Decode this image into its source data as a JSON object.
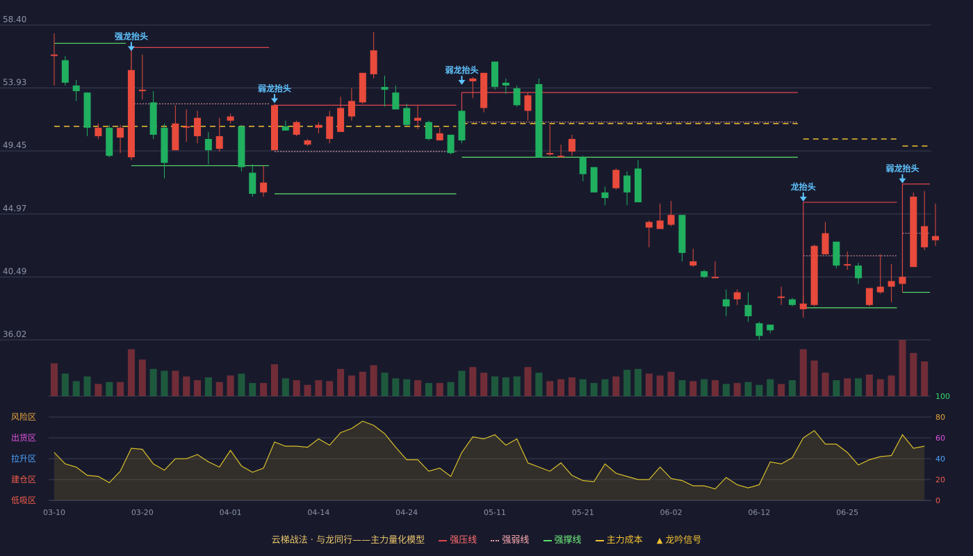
{
  "chart_data": {
    "type": "candlestick",
    "title": "",
    "price_axis": {
      "ticks": [
        "58.40",
        "53.93",
        "49.45",
        "44.97",
        "40.49",
        "36.02"
      ],
      "range": [
        36.02,
        58.4
      ]
    },
    "x_ticks": [
      "03-10",
      "03-20",
      "04-01",
      "04-14",
      "04-24",
      "05-11",
      "05-21",
      "06-02",
      "06-12",
      "06-25"
    ],
    "x_tick_index": [
      0,
      8,
      16,
      24,
      32,
      40,
      48,
      56,
      64,
      72
    ],
    "candles": [
      [
        56.3,
        56.3,
        57.8,
        54.1
      ],
      [
        55.9,
        54.3,
        56.2,
        54.1
      ],
      [
        54.1,
        53.7,
        54.5,
        53.0
      ],
      [
        53.6,
        51.1,
        53.6,
        50.5
      ],
      [
        50.5,
        51.1,
        51.4,
        50.3
      ],
      [
        51.1,
        49.1,
        51.3,
        49.0
      ],
      [
        50.4,
        51.1,
        51.3,
        49.3
      ],
      [
        49.0,
        55.2,
        56.5,
        48.8
      ],
      [
        53.7,
        53.8,
        56.3,
        53.1
      ],
      [
        52.9,
        50.6,
        53.7,
        50.3
      ],
      [
        51.1,
        48.6,
        51.4,
        47.5
      ],
      [
        49.5,
        51.4,
        52.7,
        49.5
      ],
      [
        51.1,
        51.2,
        52.4,
        50.1
      ],
      [
        50.5,
        51.8,
        52.3,
        50.0
      ],
      [
        50.3,
        49.5,
        50.8,
        48.5
      ],
      [
        49.6,
        50.5,
        51.8,
        49.4
      ],
      [
        51.6,
        51.9,
        52.1,
        51.4
      ],
      [
        51.2,
        48.3,
        51.3,
        48.0
      ],
      [
        47.9,
        46.4,
        48.5,
        46.2
      ],
      [
        46.5,
        47.2,
        48.4,
        46.2
      ],
      [
        49.5,
        52.7,
        52.8,
        49.5
      ],
      [
        51.2,
        50.9,
        51.6,
        50.9
      ],
      [
        50.6,
        51.5,
        51.6,
        50.5
      ],
      [
        49.9,
        50.2,
        50.3,
        49.8
      ],
      [
        51.1,
        51.3,
        51.5,
        50.7
      ],
      [
        50.3,
        51.9,
        52.3,
        50.0
      ],
      [
        50.8,
        52.5,
        53.3,
        50.8
      ],
      [
        51.9,
        53.0,
        53.9,
        51.6
      ],
      [
        52.9,
        55.0,
        55.0,
        52.8
      ],
      [
        54.9,
        56.6,
        57.9,
        54.6
      ],
      [
        54.0,
        53.8,
        54.8,
        52.6
      ],
      [
        53.6,
        52.4,
        54.1,
        52.4
      ],
      [
        52.5,
        51.3,
        52.8,
        51.2
      ],
      [
        51.6,
        51.8,
        52.7,
        51.0
      ],
      [
        51.5,
        50.3,
        51.6,
        50.2
      ],
      [
        50.2,
        50.7,
        51.1,
        50.2
      ],
      [
        50.6,
        49.3,
        50.6,
        49.2
      ],
      [
        52.3,
        50.2,
        52.4,
        50.0
      ],
      [
        54.4,
        54.6,
        54.7,
        53.2
      ],
      [
        52.5,
        55.0,
        55.0,
        52.2
      ],
      [
        55.8,
        54.0,
        55.8,
        53.8
      ],
      [
        54.3,
        54.1,
        54.6,
        53.5
      ],
      [
        53.9,
        52.7,
        54.1,
        52.6
      ],
      [
        52.3,
        53.4,
        53.6,
        51.6
      ],
      [
        54.2,
        49.0,
        54.6,
        49.0
      ],
      [
        49.2,
        49.3,
        51.3,
        49.1
      ],
      [
        49.1,
        49.1,
        49.9,
        49.0
      ],
      [
        49.4,
        50.3,
        50.6,
        49.1
      ],
      [
        49.0,
        47.8,
        49.1,
        47.3
      ],
      [
        48.3,
        46.5,
        48.3,
        46.5
      ],
      [
        46.5,
        46.1,
        46.9,
        45.6
      ],
      [
        46.8,
        48.1,
        48.2,
        46.7
      ],
      [
        47.7,
        46.5,
        48.0,
        45.6
      ],
      [
        48.2,
        45.8,
        48.8,
        45.8
      ],
      [
        44.0,
        44.4,
        44.5,
        42.6
      ],
      [
        43.9,
        44.5,
        45.7,
        43.9
      ],
      [
        44.2,
        44.9,
        45.9,
        44.1
      ],
      [
        44.9,
        42.2,
        44.9,
        41.6
      ],
      [
        41.3,
        41.6,
        42.5,
        41.2
      ],
      [
        40.9,
        40.5,
        41.0,
        40.4
      ],
      [
        40.5,
        40.5,
        41.6,
        40.5
      ],
      [
        38.9,
        38.4,
        39.6,
        37.7
      ],
      [
        38.9,
        39.4,
        39.6,
        38.5
      ],
      [
        38.5,
        37.7,
        39.4,
        37.3
      ],
      [
        37.2,
        36.3,
        37.3,
        36.0
      ],
      [
        37.1,
        36.7,
        37.1,
        36.5
      ],
      [
        39.0,
        39.1,
        39.8,
        38.5
      ],
      [
        38.9,
        38.5,
        39.0,
        38.4
      ],
      [
        38.2,
        38.6,
        39.2,
        37.6
      ],
      [
        38.5,
        42.7,
        42.8,
        38.4
      ],
      [
        42.1,
        43.6,
        44.4,
        42.1
      ],
      [
        43.0,
        41.3,
        43.0,
        41.1
      ],
      [
        41.3,
        41.4,
        42.3,
        41.0
      ],
      [
        41.3,
        40.4,
        41.5,
        40.0
      ],
      [
        38.5,
        39.7,
        39.7,
        38.4
      ],
      [
        39.4,
        39.8,
        42.1,
        39.3
      ],
      [
        39.8,
        40.2,
        41.4,
        38.7
      ],
      [
        40.0,
        40.5,
        41.0,
        39.4
      ],
      [
        41.2,
        46.2,
        46.5,
        41.2
      ],
      [
        42.6,
        44.1,
        46.6,
        42.4
      ],
      [
        43.1,
        43.4,
        45.7,
        42.7
      ]
    ],
    "volume": [
      35,
      24,
      16,
      21,
      13,
      15,
      15,
      50,
      39,
      29,
      27,
      27,
      21,
      17,
      20,
      15,
      22,
      24,
      14,
      14,
      34,
      19,
      17,
      12,
      17,
      16,
      29,
      22,
      26,
      33,
      25,
      19,
      18,
      17,
      14,
      14,
      15,
      27,
      31,
      25,
      21,
      20,
      21,
      31,
      25,
      16,
      18,
      20,
      18,
      14,
      18,
      21,
      28,
      29,
      24,
      22,
      26,
      17,
      16,
      18,
      17,
      13,
      14,
      15,
      12,
      18,
      13,
      17,
      50,
      38,
      25,
      17,
      19,
      19,
      23,
      18,
      22,
      60,
      46,
      37
    ],
    "oscillator": {
      "axis_ticks": [
        "100",
        "80",
        "60",
        "40",
        "20",
        "0"
      ],
      "zones": [
        "风险区",
        "出货区",
        "拉升区",
        "建仓区",
        "低吸区"
      ],
      "values": [
        46,
        35,
        32,
        24,
        23,
        17,
        28,
        50,
        49,
        35,
        29,
        40,
        40,
        44,
        37,
        32,
        48,
        33,
        27,
        31,
        56,
        52,
        52,
        51,
        59,
        53,
        65,
        69,
        76,
        72,
        64,
        51,
        39,
        39,
        28,
        31,
        23,
        46,
        61,
        59,
        63,
        53,
        59,
        36,
        32,
        28,
        36,
        24,
        19,
        18,
        35,
        26,
        23,
        20,
        20,
        32,
        21,
        19,
        14,
        14,
        11,
        22,
        15,
        12,
        15,
        37,
        35,
        41,
        60,
        67,
        54,
        54,
        46,
        34,
        39,
        42,
        43,
        63,
        50,
        52
      ]
    },
    "resistance_lines": [
      {
        "from": 7,
        "to": 19,
        "value": 56.8
      },
      {
        "from": 20,
        "to": 36,
        "value": 52.7
      },
      {
        "from": 37,
        "to": 67,
        "value": 53.6
      },
      {
        "from": 68,
        "to": 76,
        "value": 45.8
      },
      {
        "from": 77,
        "to": 79,
        "value": 47.1
      }
    ],
    "weak_lines": [
      {
        "from": 7,
        "to": 19,
        "value": 52.8
      },
      {
        "from": 20,
        "to": 36,
        "value": 49.4
      },
      {
        "from": 37,
        "to": 67,
        "value": 51.5
      },
      {
        "from": 68,
        "to": 76,
        "value": 42.0
      },
      {
        "from": 77,
        "to": 79,
        "value": 43.6
      }
    ],
    "support_lines": [
      {
        "from": 0,
        "to": 6,
        "value": 57.1
      },
      {
        "from": 7,
        "to": 19,
        "value": 48.4
      },
      {
        "from": 20,
        "to": 36,
        "value": 46.4
      },
      {
        "from": 37,
        "to": 67,
        "value": 49.0
      },
      {
        "from": 68,
        "to": 76,
        "value": 38.3
      },
      {
        "from": 77,
        "to": 79,
        "value": 39.4
      }
    ],
    "cost_lines": [
      {
        "from": 0,
        "to": 36,
        "value": 51.2
      },
      {
        "from": 37,
        "to": 67,
        "value": 51.4
      },
      {
        "from": 68,
        "to": 76,
        "value": 50.3
      },
      {
        "from": 77,
        "to": 79,
        "value": 49.8
      }
    ],
    "signals": [
      {
        "index": 7,
        "label": "强龙抬头",
        "high": 56.5
      },
      {
        "index": 20,
        "label": "弱龙抬头",
        "high": 52.8
      },
      {
        "index": 37,
        "label": "弱龙抬头",
        "high": 54.1
      },
      {
        "index": 68,
        "label": "龙抬头",
        "high": 45.8
      },
      {
        "index": 77,
        "label": "弱龙抬头",
        "high": 47.1
      }
    ],
    "colors": {
      "up": "#e84a3c",
      "down": "#20b060",
      "resistance": "#e0454c",
      "weak": "#f0a0a8",
      "support": "#5ce26a",
      "cost": "#f2c230",
      "oscillator": "#d9c02a",
      "signal": "#5fc3ff"
    },
    "zone_colors": [
      "#e8a43c",
      "#e052e0",
      "#4da3ff",
      "#f05a4a",
      "#f05a4a"
    ],
    "osc_tick_colors": [
      "#36d96b",
      "#e8a43c",
      "#e052e0",
      "#4da3ff",
      "#f05a4a",
      "#f05a4a"
    ]
  },
  "legend": {
    "title": "云梯战法 · 与龙同行——主力量化模型",
    "resistance": "强压线",
    "weak": "强弱线",
    "support": "强撑线",
    "cost": "主力成本",
    "signal": "龙吟信号"
  }
}
